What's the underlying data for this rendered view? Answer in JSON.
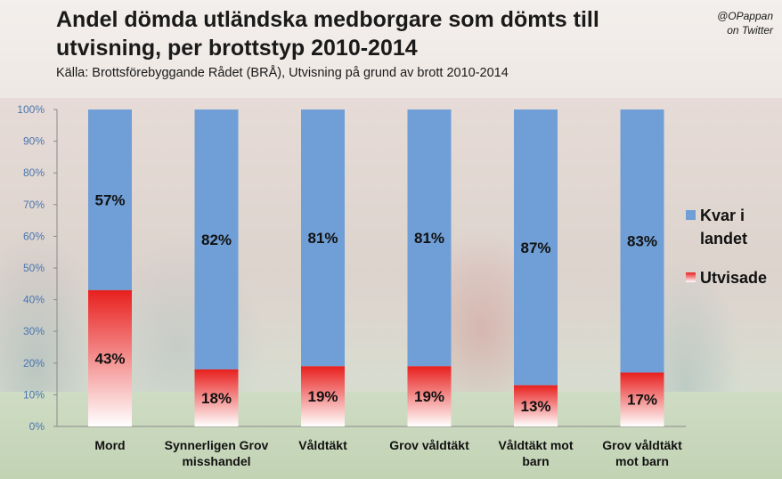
{
  "title": "Andel dömda utländska medborgare som dömts till utvisning, per brottstyp   2010-2014",
  "source": "Källa: Brottsförebyggande Rådet (BRÅ), Utvisning på grund av brott 2010-2014",
  "credit": [
    "@OPappan",
    "on Twitter"
  ],
  "colors": {
    "kvar": "#6f9fd6",
    "utvisade": "#e8201e"
  },
  "chart_data": {
    "type": "bar",
    "stacked": true,
    "categories": [
      [
        "Mord"
      ],
      [
        "Synnerligen Grov",
        "misshandel"
      ],
      [
        "Våldtäkt"
      ],
      [
        "Grov våldtäkt"
      ],
      [
        "Våldtäkt mot",
        "barn"
      ],
      [
        "Grov våldtäkt",
        "mot barn"
      ]
    ],
    "series": [
      {
        "name": "Utvisade",
        "values": [
          43,
          18,
          19,
          19,
          13,
          17
        ],
        "labels": [
          "43%",
          "18%",
          "19%",
          "19%",
          "13%",
          "17%"
        ]
      },
      {
        "name": "Kvar i landet",
        "legend_lines": [
          "Kvar i",
          "landet"
        ],
        "values": [
          57,
          82,
          81,
          81,
          87,
          83
        ],
        "labels": [
          "57%",
          "82%",
          "81%",
          "81%",
          "87%",
          "83%"
        ]
      }
    ],
    "y_ticks": [
      "0%",
      "10%",
      "20%",
      "30%",
      "40%",
      "50%",
      "60%",
      "70%",
      "80%",
      "90%",
      "100%"
    ],
    "ylim": [
      0,
      100
    ],
    "legend_position": "right",
    "grid": false
  }
}
